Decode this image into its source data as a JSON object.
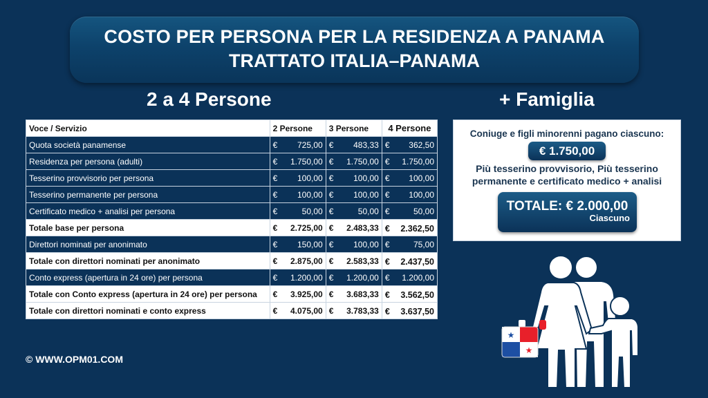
{
  "header": {
    "title_line1": "COSTO PER PERSONA PER LA RESIDENZA A PANAMA",
    "title_line2": "TRATTATO ITALIA–PANAMA"
  },
  "left_section": {
    "title": "2 a 4 Persone",
    "table": {
      "headers": [
        "Voce / Servizio",
        "2 Persone",
        "3 Persone",
        "4 Persone"
      ],
      "currency": "€",
      "rows": [
        {
          "label": "Quota società panamense",
          "style": "dark",
          "v2": "725,00",
          "v3": "483,33",
          "v4": "362,50"
        },
        {
          "label": "Residenza per persona (adulti)",
          "style": "dark",
          "v2": "1.750,00",
          "v3": "1.750,00",
          "v4": "1.750,00"
        },
        {
          "label": "Tesserino provvisorio per persona",
          "style": "dark",
          "v2": "100,00",
          "v3": "100,00",
          "v4": "100,00"
        },
        {
          "label": "Tesserino permanente per persona",
          "style": "dark",
          "v2": "100,00",
          "v3": "100,00",
          "v4": "100,00"
        },
        {
          "label": "Certificato medico + analisi per persona",
          "style": "dark",
          "v2": "50,00",
          "v3": "50,00",
          "v4": "50,00"
        },
        {
          "label": "Totale base per persona",
          "style": "light",
          "v2": "2.725,00",
          "v3": "2.483,33",
          "v4": "2.362,50"
        },
        {
          "label": "Direttori nominati per anonimato",
          "style": "dark",
          "v2": "150,00",
          "v3": "100,00",
          "v4": "75,00"
        },
        {
          "label": "Totale con direttori nominati per anonimato",
          "style": "light",
          "v2": "2.875,00",
          "v3": "2.583,33",
          "v4": "2.437,50"
        },
        {
          "label": "Conto express (apertura in 24 ore) per persona",
          "style": "dark",
          "v2": "1.200,00",
          "v3": "1.200,00",
          "v4": "1.200,00"
        },
        {
          "label": "Totale con Conto express (apertura in 24 ore) per persona",
          "style": "light",
          "v2": "3.925,00",
          "v3": "3.683,33",
          "v4": "3.562,50"
        },
        {
          "label": "Totale con direttori nominati e conto express",
          "style": "light",
          "v2": "4.075,00",
          "v3": "3.783,33",
          "v4": "3.637,50"
        }
      ]
    }
  },
  "right_section": {
    "title": "+ Famiglia",
    "intro": "Coniuge e figli minorenni pagano ciascuno:",
    "amount": "€ 1.750,00",
    "extra_line1": "Più tesserino provvisorio, Più tesserino",
    "extra_line2": "permanente e certificato medico + analisi",
    "total_label": "TOTALE: € 2.000,00",
    "total_sub": "Ciascuno",
    "illustration": "family-with-panama-flag-suitcase-icon"
  },
  "footer": {
    "copyright": "© WWW.OPM01.COM"
  },
  "colors": {
    "background": "#0b3258",
    "dark_row": "#0b3258",
    "flag_red": "#e8202a",
    "flag_blue": "#1d4fa3"
  }
}
